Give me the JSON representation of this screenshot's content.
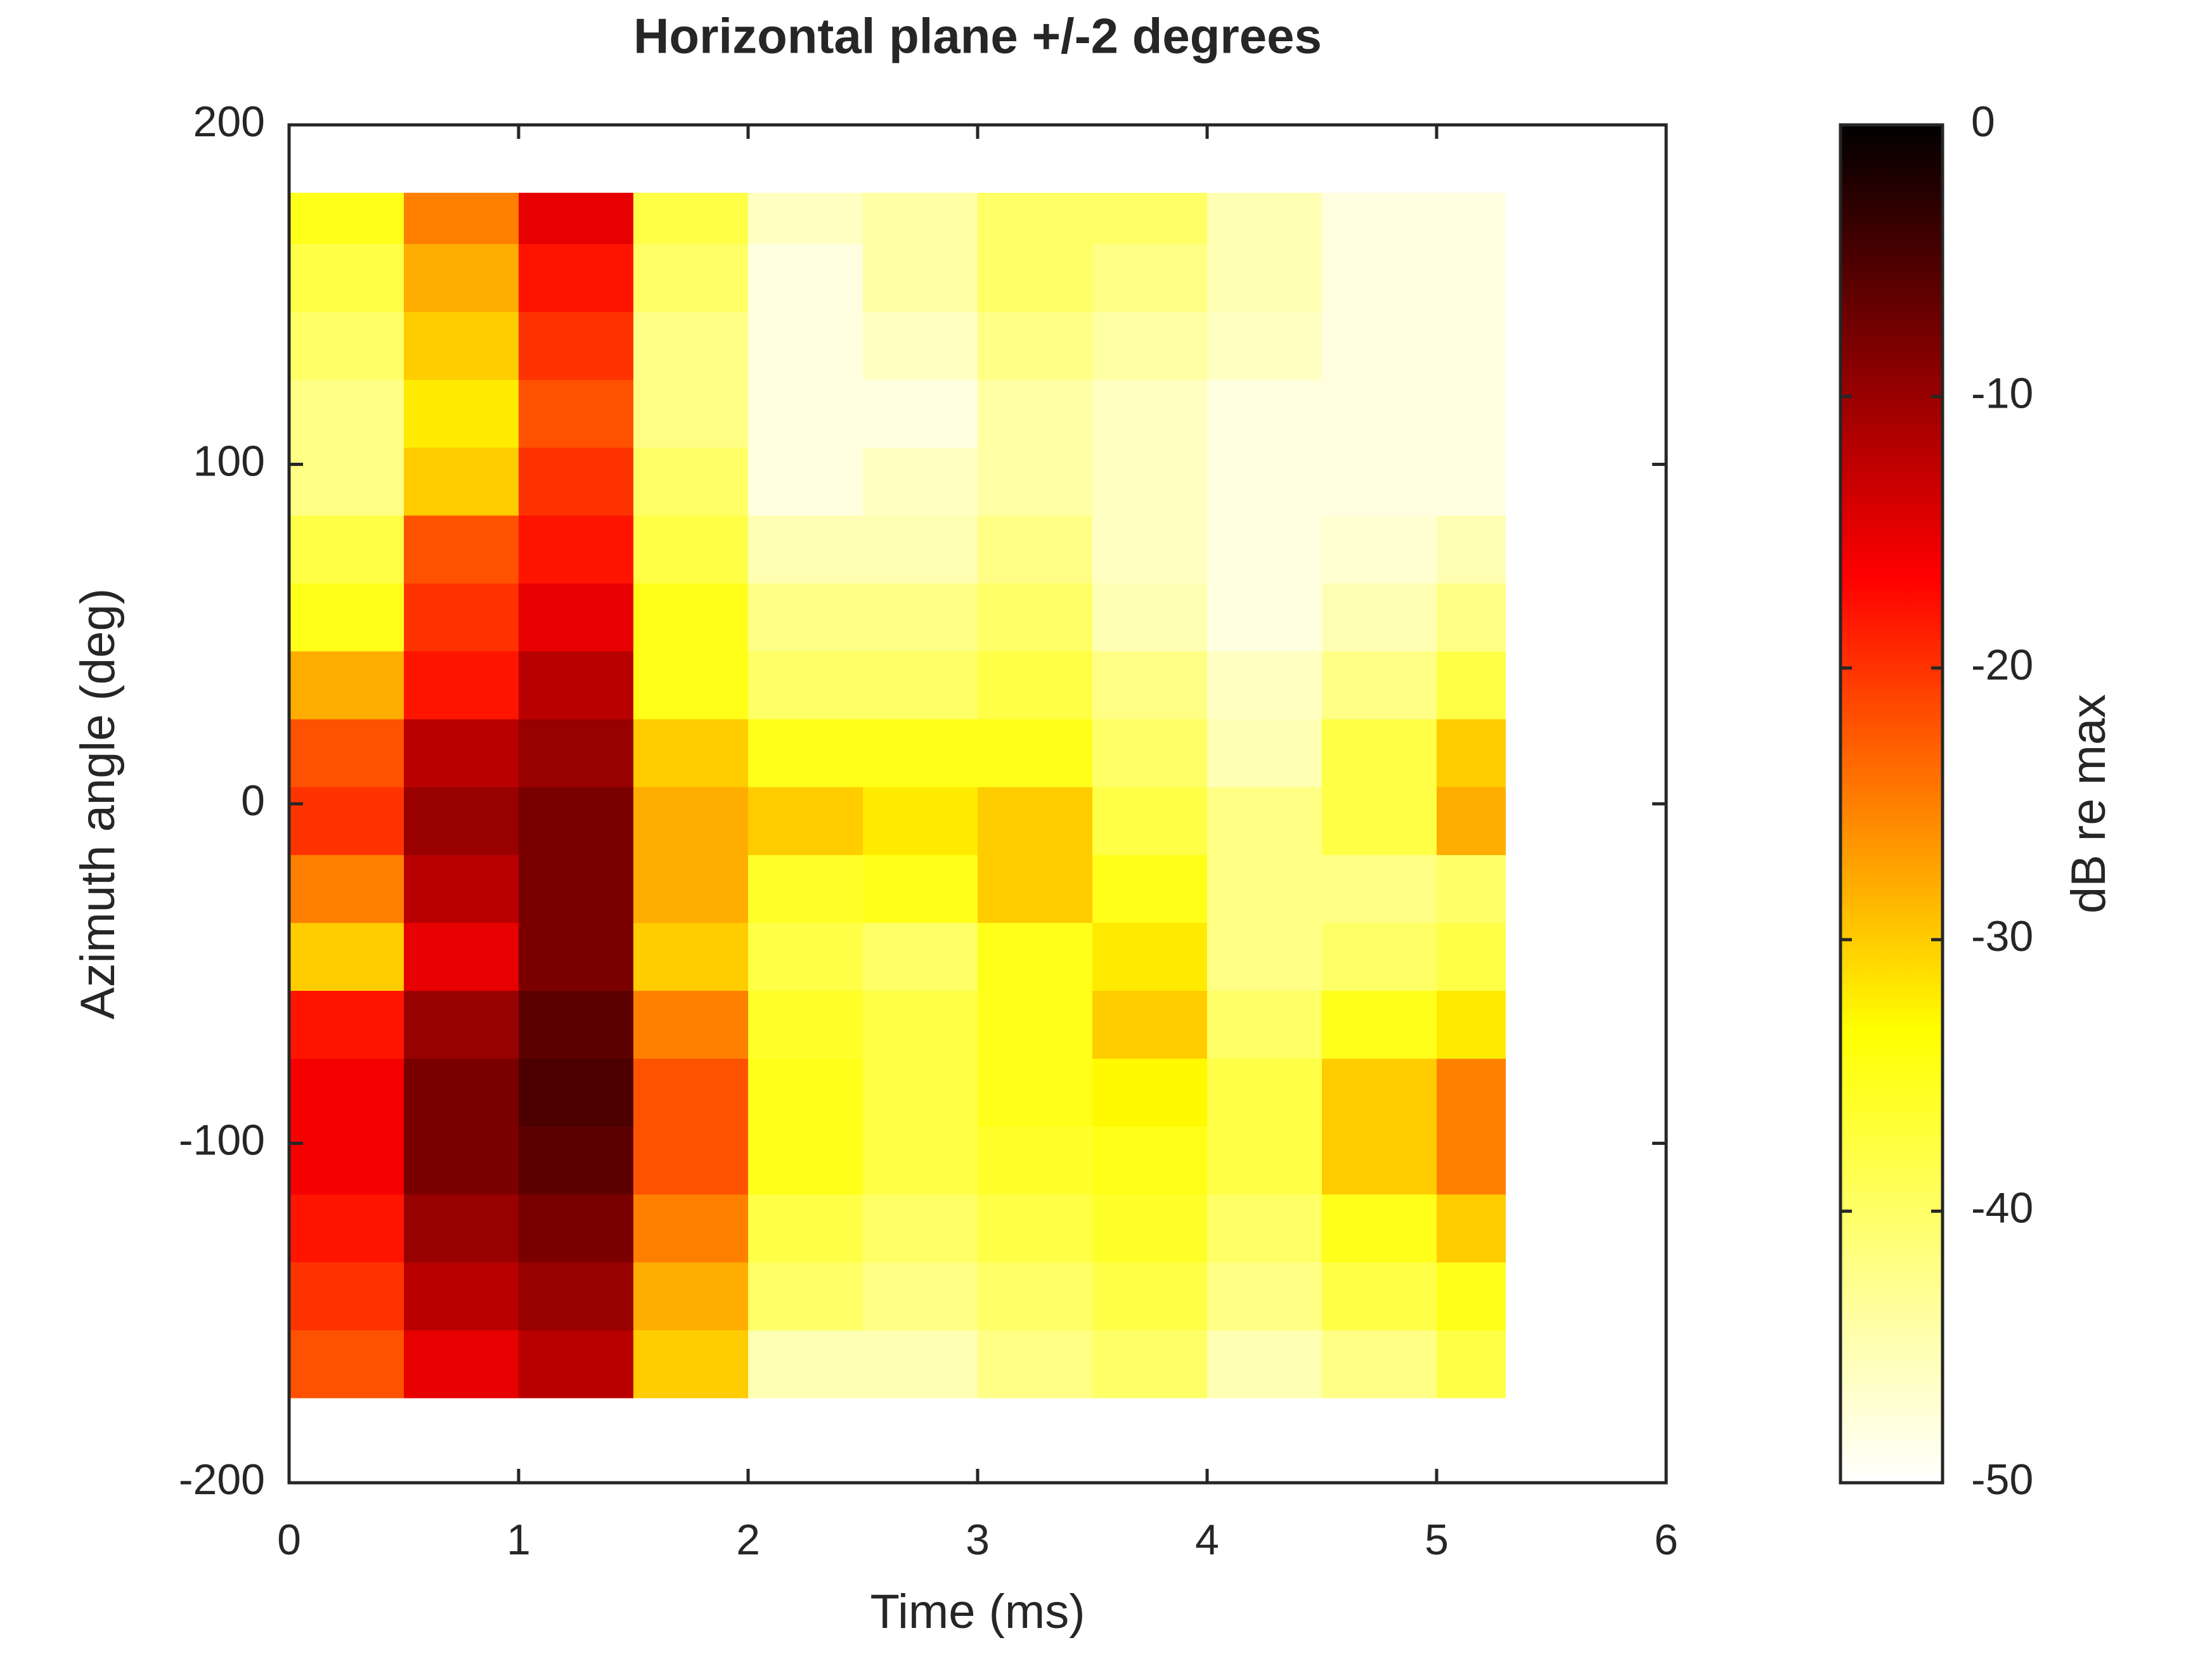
{
  "chart_data": {
    "type": "heatmap",
    "title": "Horizontal plane +/-2 degrees",
    "xlabel": "Time (ms)",
    "ylabel": "Azimuth angle (deg)",
    "colorbar_label": "dB re max",
    "x": [
      0,
      0.5,
      1,
      1.5,
      2,
      2.5,
      3,
      3.5,
      4,
      4.5,
      5,
      5.3
    ],
    "y": [
      -175,
      -155,
      -135,
      -115,
      -95,
      -75,
      -55,
      -35,
      -15,
      5,
      25,
      45,
      65,
      85,
      105,
      125,
      145,
      165,
      180
    ],
    "z": [
      [
        -22,
        -15,
        -12,
        -30,
        -45,
        -45,
        -42,
        -40,
        -45,
        -42,
        -38
      ],
      [
        -20,
        -12,
        -10,
        -28,
        -40,
        -42,
        -40,
        -38,
        -42,
        -38,
        -35
      ],
      [
        -18,
        -10,
        -8,
        -25,
        -38,
        -40,
        -38,
        -36,
        -40,
        -35,
        -30
      ],
      [
        -16,
        -8,
        -6,
        -22,
        -35,
        -38,
        -36,
        -35,
        -38,
        -30,
        -25
      ],
      [
        -16,
        -8,
        -5,
        -22,
        -35,
        -38,
        -35,
        -33,
        -38,
        -30,
        -25
      ],
      [
        -18,
        -10,
        -6,
        -25,
        -36,
        -38,
        -35,
        -30,
        -40,
        -35,
        -32
      ],
      [
        -30,
        -15,
        -8,
        -30,
        -38,
        -40,
        -35,
        -32,
        -42,
        -40,
        -38
      ],
      [
        -25,
        -12,
        -8,
        -28,
        -36,
        -35,
        -30,
        -35,
        -42,
        -42,
        -40
      ],
      [
        -20,
        -10,
        -8,
        -28,
        -30,
        -32,
        -30,
        -38,
        -42,
        -38,
        -28
      ],
      [
        -22,
        -12,
        -10,
        -30,
        -35,
        -35,
        -35,
        -40,
        -45,
        -38,
        -30
      ],
      [
        -28,
        -18,
        -12,
        -35,
        -40,
        -40,
        -38,
        -42,
        -46,
        -42,
        -38
      ],
      [
        -35,
        -20,
        -15,
        -35,
        -42,
        -42,
        -40,
        -45,
        -48,
        -45,
        -42
      ],
      [
        -38,
        -22,
        -18,
        -38,
        -45,
        -45,
        -42,
        -46,
        -48,
        -47,
        -45
      ],
      [
        -42,
        -30,
        -20,
        -40,
        -48,
        -46,
        -44,
        -46,
        -48,
        -48,
        -48
      ],
      [
        -42,
        -32,
        -22,
        -42,
        -48,
        -48,
        -44,
        -46,
        -48,
        -48,
        -48
      ],
      [
        -40,
        -30,
        -20,
        -42,
        -48,
        -46,
        -42,
        -44,
        -46,
        -48,
        -48
      ],
      [
        -38,
        -28,
        -18,
        -40,
        -48,
        -44,
        -40,
        -42,
        -45,
        -48,
        -48
      ],
      [
        -35,
        -25,
        -15,
        -38,
        -46,
        -44,
        -40,
        -40,
        -45,
        -48,
        -48
      ]
    ],
    "xlim": [
      0,
      6
    ],
    "xticks": [
      0,
      1,
      2,
      3,
      4,
      5,
      6
    ],
    "ylim": [
      -200,
      200
    ],
    "yticks": [
      -200,
      -100,
      0,
      100,
      200
    ],
    "clim": [
      -50,
      0
    ],
    "cticks": [
      -50,
      -40,
      -30,
      -20,
      -10,
      0
    ],
    "colormap": [
      "#ffffff",
      "#ffff00",
      "#ff0000",
      "#000000"
    ]
  }
}
